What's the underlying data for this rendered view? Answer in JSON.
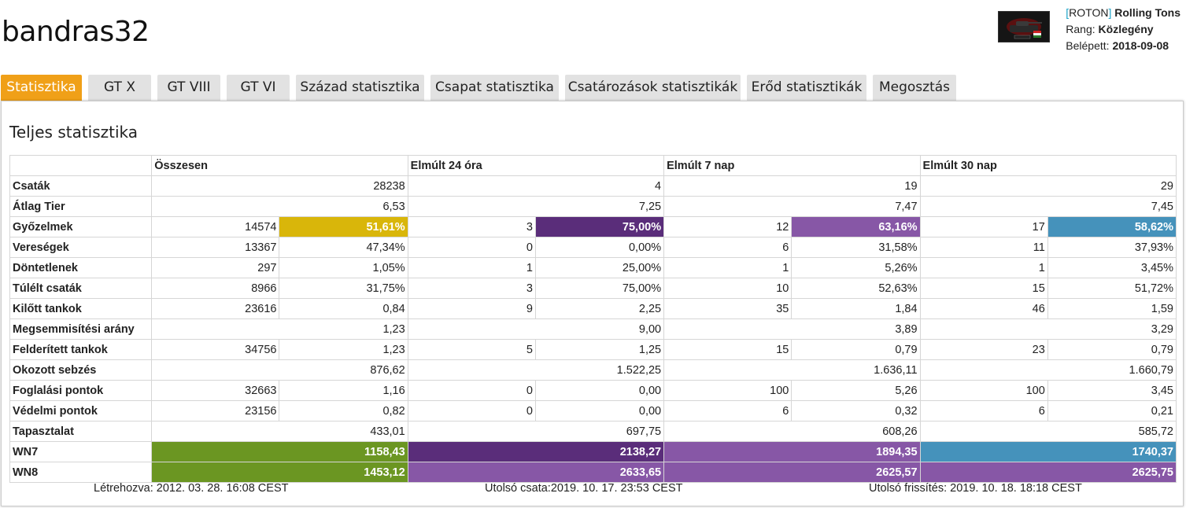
{
  "colors": {
    "accent": "#f0a018",
    "yellow": "#d9b60a",
    "dark_purple": "#5a2d7a",
    "purple": "#8757a6",
    "blue": "#4592bb",
    "green": "#6b9622"
  },
  "player": {
    "name": "bandras32"
  },
  "clan": {
    "tag_open": "[",
    "tag": "ROTON",
    "tag_close": "]",
    "name": "Rolling Tons",
    "rank_label": "Rang:",
    "rank": "Közlegény",
    "joined_label": "Belépett:",
    "joined": "2018-09-08"
  },
  "tabs": [
    {
      "label": "Statisztika",
      "active": true
    },
    {
      "label": "GT X"
    },
    {
      "label": "GT VIII"
    },
    {
      "label": "GT VI"
    },
    {
      "label": "Század statisztika"
    },
    {
      "label": "Csapat statisztika"
    },
    {
      "label": "Csatározások statisztikák"
    },
    {
      "label": "Erőd statisztikák"
    },
    {
      "label": "Megosztás"
    }
  ],
  "panel": {
    "title": "Teljes statisztika"
  },
  "table": {
    "headers": [
      "Összesen",
      "Elmúlt 24 óra",
      "Elmúlt 7 nap",
      "Elmúlt 30 nap"
    ],
    "rows": [
      {
        "label": "Csaták",
        "cells": [
          [
            "",
            "28238"
          ],
          [
            "",
            "4"
          ],
          [
            "",
            "19"
          ],
          [
            "",
            "29"
          ]
        ]
      },
      {
        "label": "Átlag Tier",
        "cells": [
          [
            "",
            "6,53"
          ],
          [
            "",
            "7,25"
          ],
          [
            "",
            "7,47"
          ],
          [
            "",
            "7,45"
          ]
        ]
      },
      {
        "label": "Győzelmek",
        "cells": [
          [
            "14574",
            "51,61%"
          ],
          [
            "3",
            "75,00%"
          ],
          [
            "12",
            "63,16%"
          ],
          [
            "17",
            "58,62%"
          ]
        ],
        "hl": [
          "yellow",
          "dark_purple",
          "purple",
          "blue"
        ]
      },
      {
        "label": "Vereségek",
        "cells": [
          [
            "13367",
            "47,34%"
          ],
          [
            "0",
            "0,00%"
          ],
          [
            "6",
            "31,58%"
          ],
          [
            "11",
            "37,93%"
          ]
        ]
      },
      {
        "label": "Döntetlenek",
        "cells": [
          [
            "297",
            "1,05%"
          ],
          [
            "1",
            "25,00%"
          ],
          [
            "1",
            "5,26%"
          ],
          [
            "1",
            "3,45%"
          ]
        ]
      },
      {
        "label": "Túlélt csaták",
        "cells": [
          [
            "8966",
            "31,75%"
          ],
          [
            "3",
            "75,00%"
          ],
          [
            "10",
            "52,63%"
          ],
          [
            "15",
            "51,72%"
          ]
        ]
      },
      {
        "label": "Kilőtt tankok",
        "cells": [
          [
            "23616",
            "0,84"
          ],
          [
            "9",
            "2,25"
          ],
          [
            "35",
            "1,84"
          ],
          [
            "46",
            "1,59"
          ]
        ]
      },
      {
        "label": "Megsemmisítési arány",
        "cells": [
          [
            "",
            "1,23"
          ],
          [
            "",
            "9,00"
          ],
          [
            "",
            "3,89"
          ],
          [
            "",
            "3,29"
          ]
        ]
      },
      {
        "label": "Felderített tankok",
        "cells": [
          [
            "34756",
            "1,23"
          ],
          [
            "5",
            "1,25"
          ],
          [
            "15",
            "0,79"
          ],
          [
            "23",
            "0,79"
          ]
        ]
      },
      {
        "label": "Okozott sebzés",
        "cells": [
          [
            "",
            "876,62"
          ],
          [
            "",
            "1.522,25"
          ],
          [
            "",
            "1.636,11"
          ],
          [
            "",
            "1.660,79"
          ]
        ]
      },
      {
        "label": "Foglalási pontok",
        "cells": [
          [
            "32663",
            "1,16"
          ],
          [
            "0",
            "0,00"
          ],
          [
            "100",
            "5,26"
          ],
          [
            "100",
            "3,45"
          ]
        ]
      },
      {
        "label": "Védelmi pontok",
        "cells": [
          [
            "23156",
            "0,82"
          ],
          [
            "0",
            "0,00"
          ],
          [
            "6",
            "0,32"
          ],
          [
            "6",
            "0,21"
          ]
        ]
      },
      {
        "label": "Tapasztalat",
        "cells": [
          [
            "",
            "433,01"
          ],
          [
            "",
            "697,75"
          ],
          [
            "",
            "608,26"
          ],
          [
            "",
            "585,72"
          ]
        ]
      },
      {
        "label": "WN7",
        "cells": [
          [
            "",
            "1158,43"
          ],
          [
            "",
            "2138,27"
          ],
          [
            "",
            "1894,35"
          ],
          [
            "",
            "1740,37"
          ]
        ],
        "hl": [
          "green",
          "dark_purple",
          "purple",
          "blue"
        ]
      },
      {
        "label": "WN8",
        "cells": [
          [
            "",
            "1453,12"
          ],
          [
            "",
            "2633,65"
          ],
          [
            "",
            "2625,57"
          ],
          [
            "",
            "2625,75"
          ]
        ],
        "hl": [
          "green",
          "purple",
          "purple",
          "purple"
        ]
      }
    ]
  },
  "footer": {
    "created": "Létrehozva: 2012. 03. 28. 16:08 CEST",
    "last_battle": "Utolsó csata:2019. 10. 17. 23:53 CEST",
    "last_update": "Utolsó frissítés: 2019. 10. 18. 18:18 CEST"
  }
}
